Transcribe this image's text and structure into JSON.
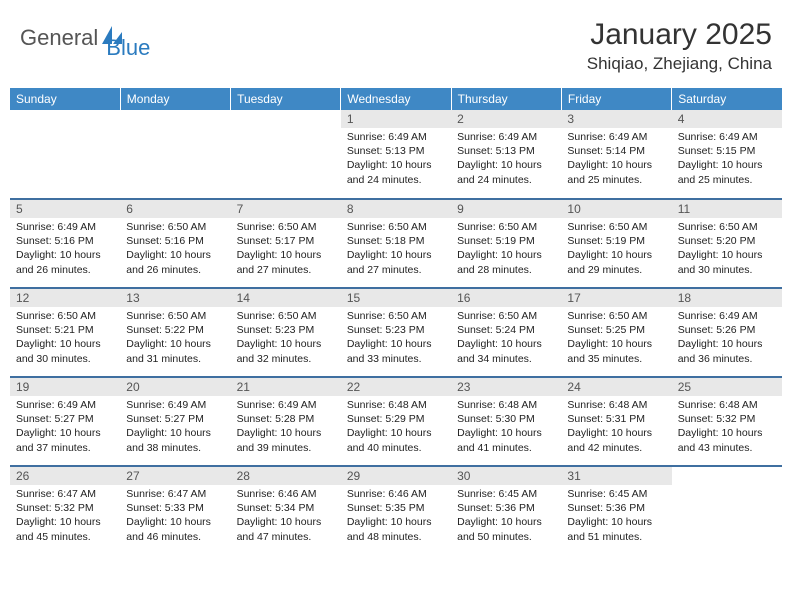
{
  "logo": {
    "textA": "General",
    "textB": "Blue"
  },
  "title": "January 2025",
  "location": "Shiqiao, Zhejiang, China",
  "colors": {
    "headerBg": "#3f88c5",
    "headerText": "#ffffff",
    "dayNumBg": "#e8e8e8",
    "rowDivider": "#3f6fa0",
    "logoBlue": "#2b7bbf"
  },
  "dayHeaders": [
    "Sunday",
    "Monday",
    "Tuesday",
    "Wednesday",
    "Thursday",
    "Friday",
    "Saturday"
  ],
  "weeks": [
    [
      null,
      null,
      null,
      {
        "n": "1",
        "sr": "6:49 AM",
        "ss": "5:13 PM",
        "dl": "10 hours and 24 minutes."
      },
      {
        "n": "2",
        "sr": "6:49 AM",
        "ss": "5:13 PM",
        "dl": "10 hours and 24 minutes."
      },
      {
        "n": "3",
        "sr": "6:49 AM",
        "ss": "5:14 PM",
        "dl": "10 hours and 25 minutes."
      },
      {
        "n": "4",
        "sr": "6:49 AM",
        "ss": "5:15 PM",
        "dl": "10 hours and 25 minutes."
      }
    ],
    [
      {
        "n": "5",
        "sr": "6:49 AM",
        "ss": "5:16 PM",
        "dl": "10 hours and 26 minutes."
      },
      {
        "n": "6",
        "sr": "6:50 AM",
        "ss": "5:16 PM",
        "dl": "10 hours and 26 minutes."
      },
      {
        "n": "7",
        "sr": "6:50 AM",
        "ss": "5:17 PM",
        "dl": "10 hours and 27 minutes."
      },
      {
        "n": "8",
        "sr": "6:50 AM",
        "ss": "5:18 PM",
        "dl": "10 hours and 27 minutes."
      },
      {
        "n": "9",
        "sr": "6:50 AM",
        "ss": "5:19 PM",
        "dl": "10 hours and 28 minutes."
      },
      {
        "n": "10",
        "sr": "6:50 AM",
        "ss": "5:19 PM",
        "dl": "10 hours and 29 minutes."
      },
      {
        "n": "11",
        "sr": "6:50 AM",
        "ss": "5:20 PM",
        "dl": "10 hours and 30 minutes."
      }
    ],
    [
      {
        "n": "12",
        "sr": "6:50 AM",
        "ss": "5:21 PM",
        "dl": "10 hours and 30 minutes."
      },
      {
        "n": "13",
        "sr": "6:50 AM",
        "ss": "5:22 PM",
        "dl": "10 hours and 31 minutes."
      },
      {
        "n": "14",
        "sr": "6:50 AM",
        "ss": "5:23 PM",
        "dl": "10 hours and 32 minutes."
      },
      {
        "n": "15",
        "sr": "6:50 AM",
        "ss": "5:23 PM",
        "dl": "10 hours and 33 minutes."
      },
      {
        "n": "16",
        "sr": "6:50 AM",
        "ss": "5:24 PM",
        "dl": "10 hours and 34 minutes."
      },
      {
        "n": "17",
        "sr": "6:50 AM",
        "ss": "5:25 PM",
        "dl": "10 hours and 35 minutes."
      },
      {
        "n": "18",
        "sr": "6:49 AM",
        "ss": "5:26 PM",
        "dl": "10 hours and 36 minutes."
      }
    ],
    [
      {
        "n": "19",
        "sr": "6:49 AM",
        "ss": "5:27 PM",
        "dl": "10 hours and 37 minutes."
      },
      {
        "n": "20",
        "sr": "6:49 AM",
        "ss": "5:27 PM",
        "dl": "10 hours and 38 minutes."
      },
      {
        "n": "21",
        "sr": "6:49 AM",
        "ss": "5:28 PM",
        "dl": "10 hours and 39 minutes."
      },
      {
        "n": "22",
        "sr": "6:48 AM",
        "ss": "5:29 PM",
        "dl": "10 hours and 40 minutes."
      },
      {
        "n": "23",
        "sr": "6:48 AM",
        "ss": "5:30 PM",
        "dl": "10 hours and 41 minutes."
      },
      {
        "n": "24",
        "sr": "6:48 AM",
        "ss": "5:31 PM",
        "dl": "10 hours and 42 minutes."
      },
      {
        "n": "25",
        "sr": "6:48 AM",
        "ss": "5:32 PM",
        "dl": "10 hours and 43 minutes."
      }
    ],
    [
      {
        "n": "26",
        "sr": "6:47 AM",
        "ss": "5:32 PM",
        "dl": "10 hours and 45 minutes."
      },
      {
        "n": "27",
        "sr": "6:47 AM",
        "ss": "5:33 PM",
        "dl": "10 hours and 46 minutes."
      },
      {
        "n": "28",
        "sr": "6:46 AM",
        "ss": "5:34 PM",
        "dl": "10 hours and 47 minutes."
      },
      {
        "n": "29",
        "sr": "6:46 AM",
        "ss": "5:35 PM",
        "dl": "10 hours and 48 minutes."
      },
      {
        "n": "30",
        "sr": "6:45 AM",
        "ss": "5:36 PM",
        "dl": "10 hours and 50 minutes."
      },
      {
        "n": "31",
        "sr": "6:45 AM",
        "ss": "5:36 PM",
        "dl": "10 hours and 51 minutes."
      },
      null
    ]
  ],
  "labels": {
    "sunrise": "Sunrise:",
    "sunset": "Sunset:",
    "daylight": "Daylight:"
  }
}
